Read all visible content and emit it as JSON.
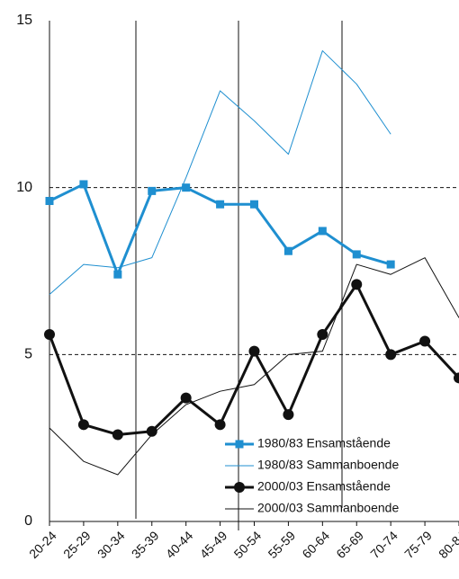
{
  "chart_data": {
    "type": "line",
    "categories": [
      "20-24",
      "25-29",
      "30-34",
      "35-39",
      "40-44",
      "45-49",
      "50-54",
      "55-59",
      "60-64",
      "65-69",
      "70-74",
      "75-79",
      "80-84"
    ],
    "series": [
      {
        "name": "1980/83 Ensamstående",
        "color": "#1f8fd0",
        "width": 3,
        "marker": "square",
        "values": [
          9.6,
          10.1,
          7.4,
          9.9,
          10.0,
          9.5,
          9.5,
          8.1,
          8.7,
          8.0,
          7.7,
          null,
          null
        ]
      },
      {
        "name": "1980/83 Sammanboende",
        "color": "#1f8fd0",
        "width": 1,
        "marker": null,
        "values": [
          6.8,
          7.7,
          7.6,
          7.9,
          10.3,
          12.9,
          12.0,
          11.0,
          14.1,
          13.1,
          11.6,
          null,
          null
        ]
      },
      {
        "name": "2000/03 Ensamstående",
        "color": "#111111",
        "width": 3,
        "marker": "circle",
        "values": [
          5.6,
          2.9,
          2.6,
          2.7,
          3.7,
          2.9,
          5.1,
          3.2,
          5.6,
          7.1,
          5.0,
          5.4,
          4.3
        ]
      },
      {
        "name": "2000/03 Sammanboende",
        "color": "#111111",
        "width": 1,
        "marker": null,
        "values": [
          2.8,
          1.8,
          1.4,
          2.6,
          3.5,
          3.9,
          4.1,
          5.0,
          5.1,
          7.7,
          7.4,
          7.9,
          6.1
        ]
      }
    ],
    "ylim": [
      0,
      15
    ],
    "yticks": [
      0,
      5,
      10,
      15
    ],
    "grid": true,
    "legend": "lower right"
  }
}
